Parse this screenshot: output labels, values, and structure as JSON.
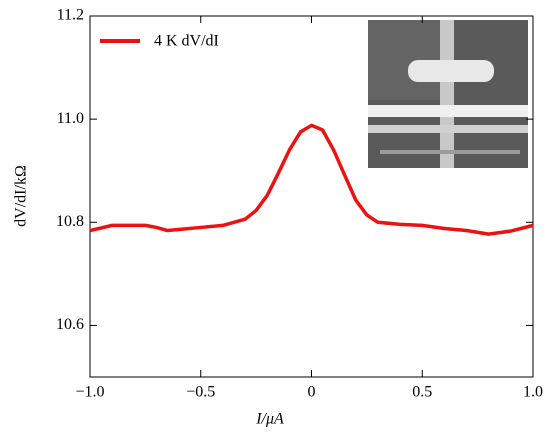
{
  "chart_data": {
    "type": "line",
    "x_label": "I/μA",
    "y_label": "dV/dI/kΩ",
    "x": [
      -1.0,
      -0.9,
      -0.8,
      -0.75,
      -0.7,
      -0.65,
      -0.6,
      -0.5,
      -0.4,
      -0.3,
      -0.25,
      -0.2,
      -0.15,
      -0.1,
      -0.05,
      0,
      0.05,
      0.1,
      0.15,
      0.2,
      0.25,
      0.3,
      0.4,
      0.5,
      0.6,
      0.7,
      0.8,
      0.9,
      1.0
    ],
    "series": [
      {
        "name": "4 K dV/dI",
        "color": "#ee1111",
        "values": [
          10.784,
          10.794,
          10.794,
          10.794,
          10.79,
          10.784,
          10.786,
          10.79,
          10.794,
          10.806,
          10.823,
          10.852,
          10.895,
          10.94,
          10.975,
          10.988,
          10.979,
          10.94,
          10.891,
          10.843,
          10.814,
          10.8,
          10.796,
          10.794,
          10.788,
          10.784,
          10.777,
          10.783,
          10.794
        ]
      }
    ],
    "xlim": [
      -1.0,
      1.0
    ],
    "xticks": [
      {
        "value": -1.0,
        "label": "−1.0"
      },
      {
        "value": -0.5,
        "label": "−0.5"
      },
      0,
      0.5,
      {
        "value": 1.0,
        "label": "1.0"
      }
    ],
    "ylim": [
      10.5,
      11.2
    ],
    "yticks": [
      10.6,
      10.8,
      {
        "value": 11.0,
        "label": "11.0"
      },
      11.2
    ],
    "legend": "upper left"
  }
}
